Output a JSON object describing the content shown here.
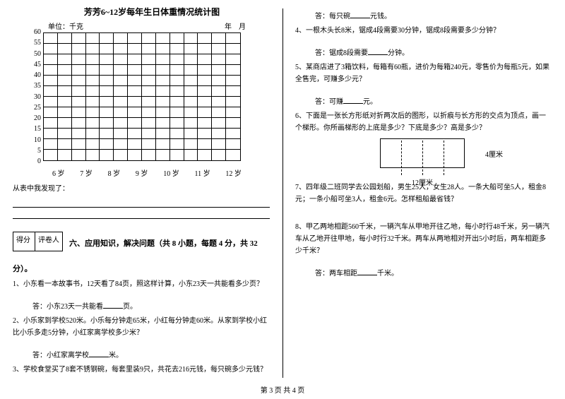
{
  "chart": {
    "title": "芳芳6~12岁每年生日体重情况统计图",
    "unit_label": "单位：千克",
    "date_label": "年　月",
    "y_ticks": [
      "60",
      "55",
      "50",
      "45",
      "40",
      "35",
      "30",
      "25",
      "20",
      "15",
      "10",
      "5",
      "0"
    ],
    "x_ticks": [
      "6 岁",
      "7 岁",
      "8 岁",
      "9 岁",
      "10 岁",
      "11 岁",
      "12 岁"
    ],
    "grid_cols": 14,
    "grid_rows": 12,
    "border_color": "#000000",
    "background_color": "#ffffff"
  },
  "left": {
    "discover": "从表中我发现了：",
    "score_labels": {
      "a": "得分",
      "b": "评卷人"
    },
    "section_title": "六、应用知识，解决问题（共 8 小题，每题 4 分，共 32",
    "section_title_tail": "分）。",
    "q1": "1、小东看一本故事书，12天看了84页，照这样计算，小东23天一共能看多少页？",
    "a1_pre": "答：小东23天一共能看",
    "a1_suf": "页。",
    "q2": "2、小乐家到学校520米。小乐每分钟走65米，小红每分钟走60米。从家到学校小红比小乐多走5分钟，小红家离学校多少米？",
    "a2_pre": "答：小红家离学校",
    "a2_suf": "米。",
    "q3": "3、学校食堂买了8套不锈钢碗，每套里装9只，共花去216元钱，每只碗多少元钱？"
  },
  "right": {
    "a3_pre": "答：每只碗",
    "a3_suf": "元钱。",
    "q4": "4、一根木头长8米，锯成4段需要30分钟，锯成8段需要多少分钟？",
    "a4_pre": "答：锯成8段需要",
    "a4_suf": "分钟。",
    "q5": "5、某商店进了3箱饮料，每箱有60瓶，进价为每箱240元，零售价为每瓶5元，如果全售完，可赚多少元？",
    "a5_pre": "答：可赚",
    "a5_suf": "元。",
    "q6": "6、下面是一张长方形纸对折两次后的图形，以折痕与长方形的交点为顶点，画一个梯形。你所画梯形的上底是多少？下底是多少？高是多少？",
    "diagram": {
      "width_label": "12厘米",
      "height_label": "4厘米"
    },
    "q7": "7、四年级二班同学去公园划船，男生25人，女生28人。一条大船可坐5人，租金8元；一条小船可坐3人，租金6元。怎样租船最省钱？",
    "q8": "8、甲乙两地相距560千米，一辆汽车从甲地开往乙地，每小时行48千米，另一辆汽车从乙地开往甲地，每小时行32千米。两车从两地相对开出5小时后，两车相距多少千米？",
    "a8_pre": "答：两车相距",
    "a8_suf": "千米。"
  },
  "footer": "第 3 页 共 4 页"
}
